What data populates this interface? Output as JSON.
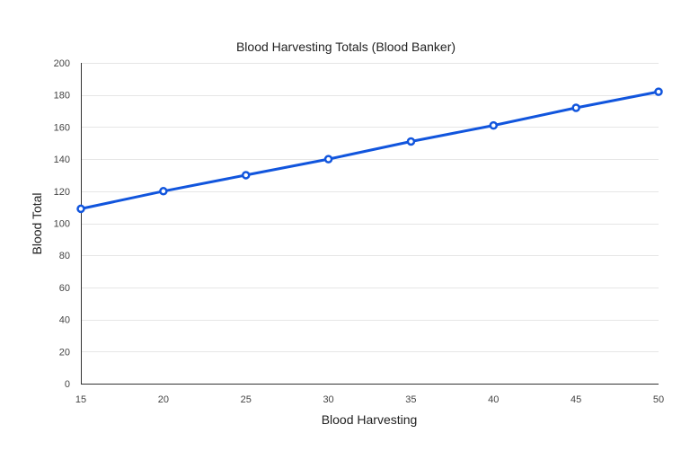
{
  "chart_data": {
    "type": "line",
    "title": "Blood Harvesting Totals (Blood Banker)",
    "xlabel": "Blood Harvesting",
    "ylabel": "Blood Total",
    "x": [
      15,
      20,
      25,
      30,
      35,
      40,
      45,
      50
    ],
    "series": [
      {
        "values": [
          109,
          120,
          130,
          140,
          151,
          161,
          172,
          182
        ]
      }
    ],
    "xlim": [
      15,
      50
    ],
    "ylim": [
      0,
      200
    ],
    "xticks": [
      "15",
      "20",
      "25",
      "30",
      "35",
      "40",
      "45",
      "50"
    ],
    "yticks": [
      "0",
      "20",
      "40",
      "60",
      "80",
      "100",
      "120",
      "140",
      "160",
      "180",
      "200"
    ],
    "grid": true,
    "legend": "none",
    "colors": {
      "line": "#1155dd",
      "grid": "#e6e6e6",
      "axis": "#333333",
      "background": "#ffffff"
    }
  }
}
